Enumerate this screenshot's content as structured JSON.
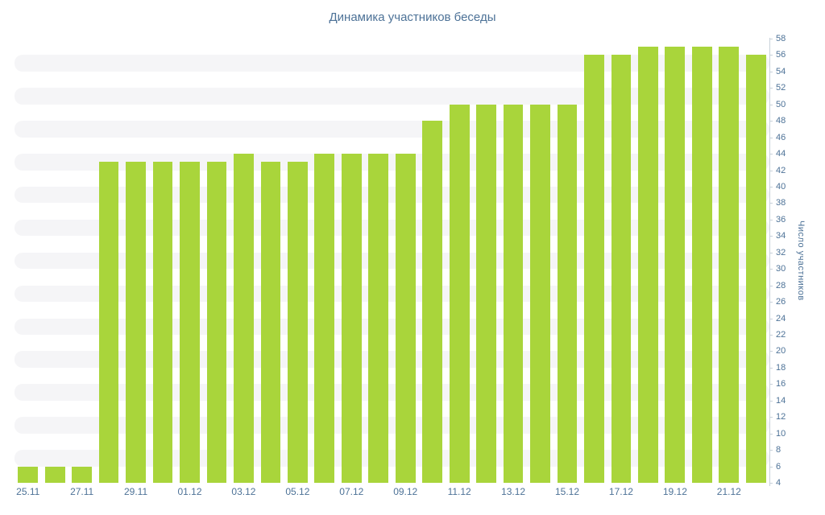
{
  "colors": {
    "bar": "#a9d53b",
    "text": "#4d7297",
    "stripe": "#f5f5f7",
    "axis": "#c8d1da"
  },
  "chart_data": {
    "type": "bar",
    "title": "Динамика участников беседы",
    "xlabel": "",
    "ylabel": "Число участников",
    "ylim": [
      4,
      58
    ],
    "ytick_step": 2,
    "grid": "horizontal-stripes",
    "legend": false,
    "categories": [
      "25.11",
      "26.11",
      "27.11",
      "28.11",
      "29.11",
      "30.11",
      "01.12",
      "02.12",
      "03.12",
      "04.12",
      "05.12",
      "06.12",
      "07.12",
      "08.12",
      "09.12",
      "10.12",
      "11.12",
      "12.12",
      "13.12",
      "14.12",
      "15.12",
      "16.12",
      "17.12",
      "18.12",
      "19.12",
      "20.12",
      "21.12",
      "22.12"
    ],
    "values": [
      6,
      6,
      6,
      43,
      43,
      43,
      43,
      43,
      44,
      43,
      43,
      44,
      44,
      44,
      44,
      48,
      50,
      50,
      50,
      50,
      50,
      56,
      56,
      57,
      57,
      57,
      57,
      56
    ],
    "x_tick_labels": [
      "25.11",
      "27.11",
      "29.11",
      "01.12",
      "03.12",
      "05.12",
      "07.12",
      "09.12",
      "11.12",
      "13.12",
      "15.12",
      "17.12",
      "19.12",
      "21.12"
    ],
    "y_tick_labels": [
      "4",
      "6",
      "8",
      "10",
      "12",
      "14",
      "16",
      "18",
      "20",
      "22",
      "24",
      "26",
      "28",
      "30",
      "32",
      "34",
      "36",
      "38",
      "40",
      "42",
      "44",
      "46",
      "48",
      "50",
      "52",
      "54",
      "56",
      "58"
    ]
  }
}
